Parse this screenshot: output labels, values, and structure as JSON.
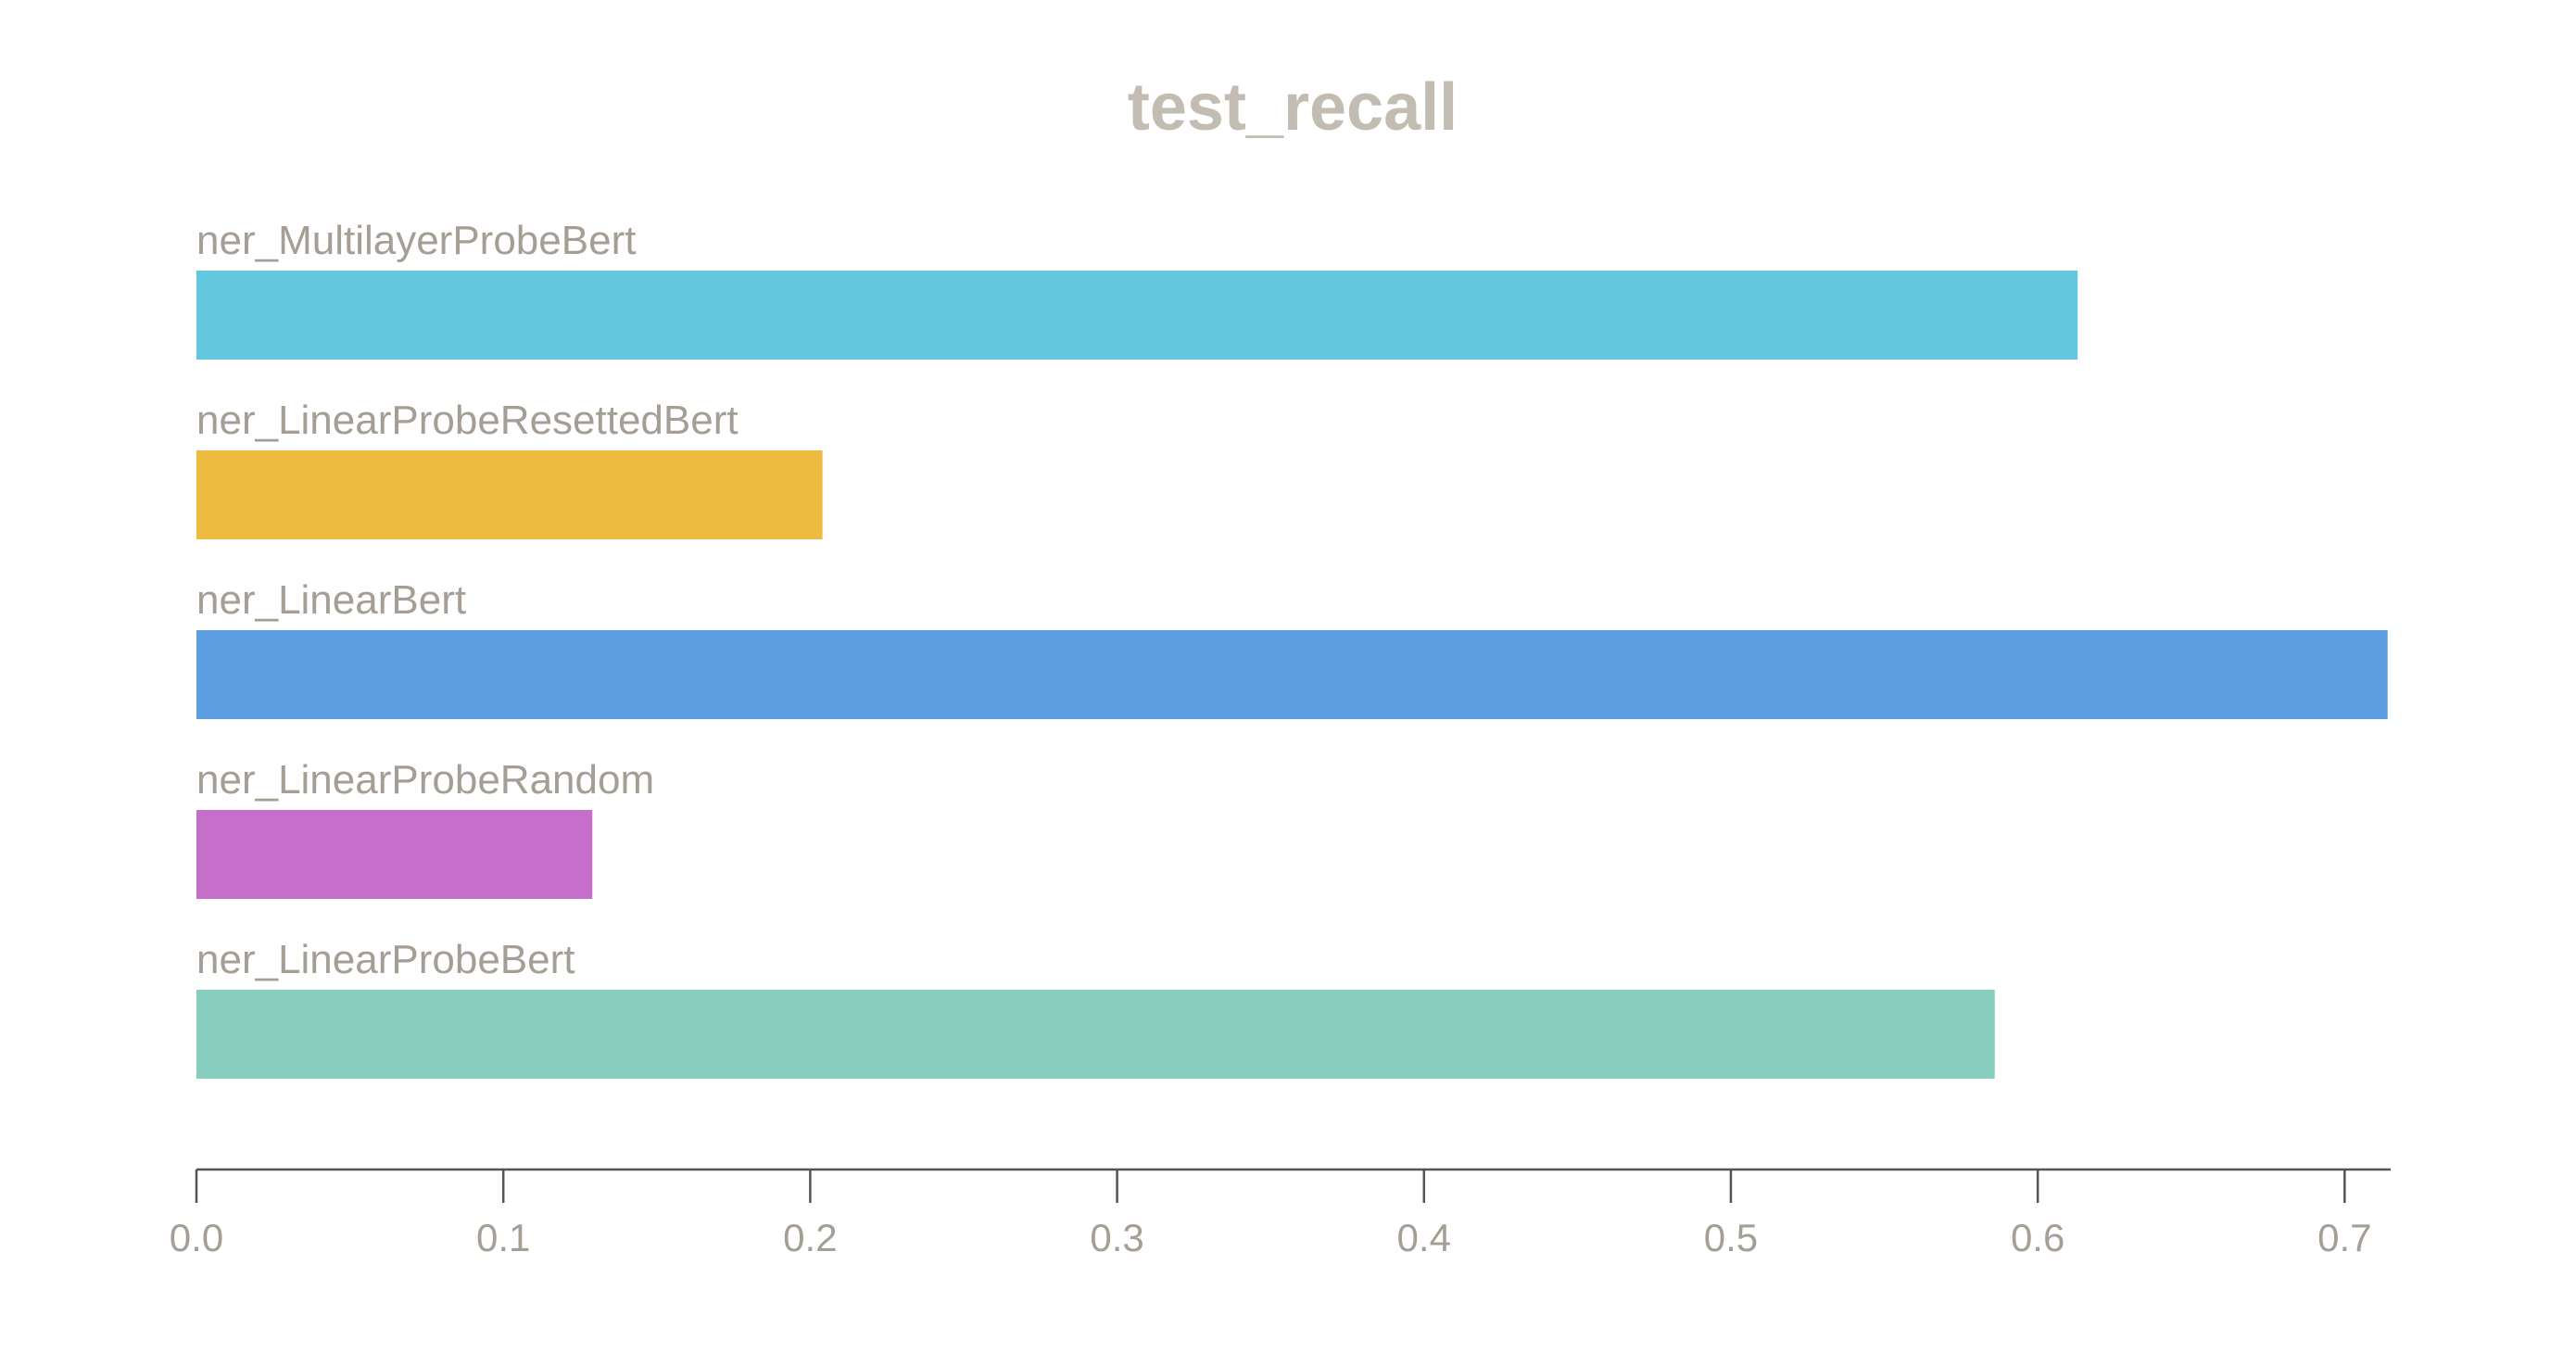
{
  "chart_data": {
    "type": "bar",
    "orientation": "horizontal",
    "title": "test_recall",
    "xlabel": "",
    "ylabel": "",
    "xlim": [
      0,
      0.715
    ],
    "grid": false,
    "legend": "none",
    "categories": [
      "ner_MultilayerProbeBert",
      "ner_LinearProbeResettedBert",
      "ner_LinearBert",
      "ner_LinearProbeRandom",
      "ner_LinearProbeBert"
    ],
    "values": [
      0.613,
      0.204,
      0.714,
      0.129,
      0.586
    ],
    "colors": [
      "#63c7de",
      "#edbb3f",
      "#5c9ee0",
      "#c56fca",
      "#88cfbf"
    ],
    "x_ticks": [
      0.0,
      0.1,
      0.2,
      0.3,
      0.4,
      0.5,
      0.6,
      0.7
    ],
    "x_tick_labels": [
      "0.0",
      "0.1",
      "0.2",
      "0.3",
      "0.4",
      "0.5",
      "0.6",
      "0.7"
    ]
  }
}
